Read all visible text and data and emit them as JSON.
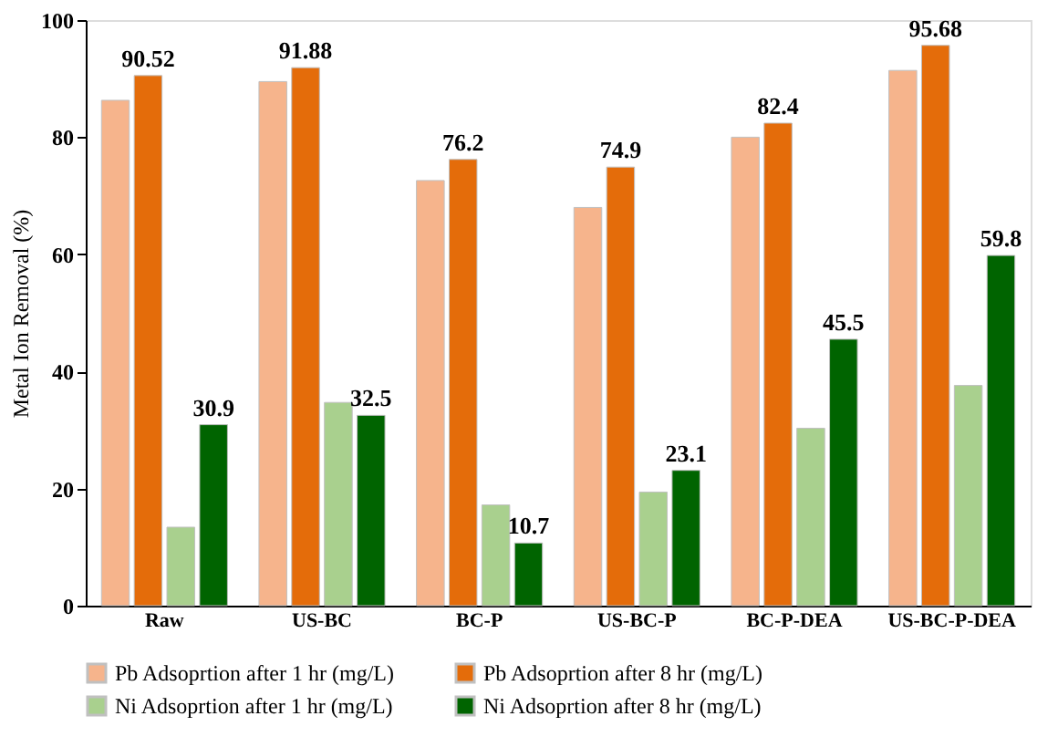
{
  "chart_data": {
    "type": "bar",
    "ylabel": "Metal Ion Removal (%)",
    "categories": [
      "Raw",
      "US-BC",
      "BC-P",
      "US-BC-P",
      "BC-P-DEA",
      "US-BC-P-DEA"
    ],
    "series": [
      {
        "name": "Pb Adsoprtion after 1 hr (mg/L)",
        "color": "#f6b48c",
        "values": [
          86.3,
          89.5,
          72.6,
          68,
          80,
          91.4
        ]
      },
      {
        "name": "Pb Adsoprtion after 8 hr (mg/L)",
        "color": "#e46c0a",
        "values": [
          90.52,
          91.88,
          76.2,
          74.9,
          82.4,
          95.68
        ],
        "value_labels": [
          "90.52",
          "91.88",
          "76.2",
          "74.9",
          "82.4",
          "95.68"
        ]
      },
      {
        "name": "Ni Adsoprtion after 1 hr (mg/L)",
        "color": "#a9d08e",
        "values": [
          13.4,
          34.7,
          17.2,
          19.4,
          30.3,
          37.6
        ]
      },
      {
        "name": "Ni Adsoprtion after 8 hr (mg/L)",
        "color": "#006400",
        "values": [
          30.9,
          32.5,
          10.7,
          23.1,
          45.5,
          59.8
        ],
        "value_labels": [
          "30.9",
          "32.5",
          "10.7",
          "23.1",
          "45.5",
          "59.8"
        ]
      }
    ],
    "ylim": [
      0,
      100
    ],
    "yticks": [
      0,
      20,
      40,
      60,
      80,
      100
    ],
    "grid": false,
    "legend": "bottom"
  }
}
